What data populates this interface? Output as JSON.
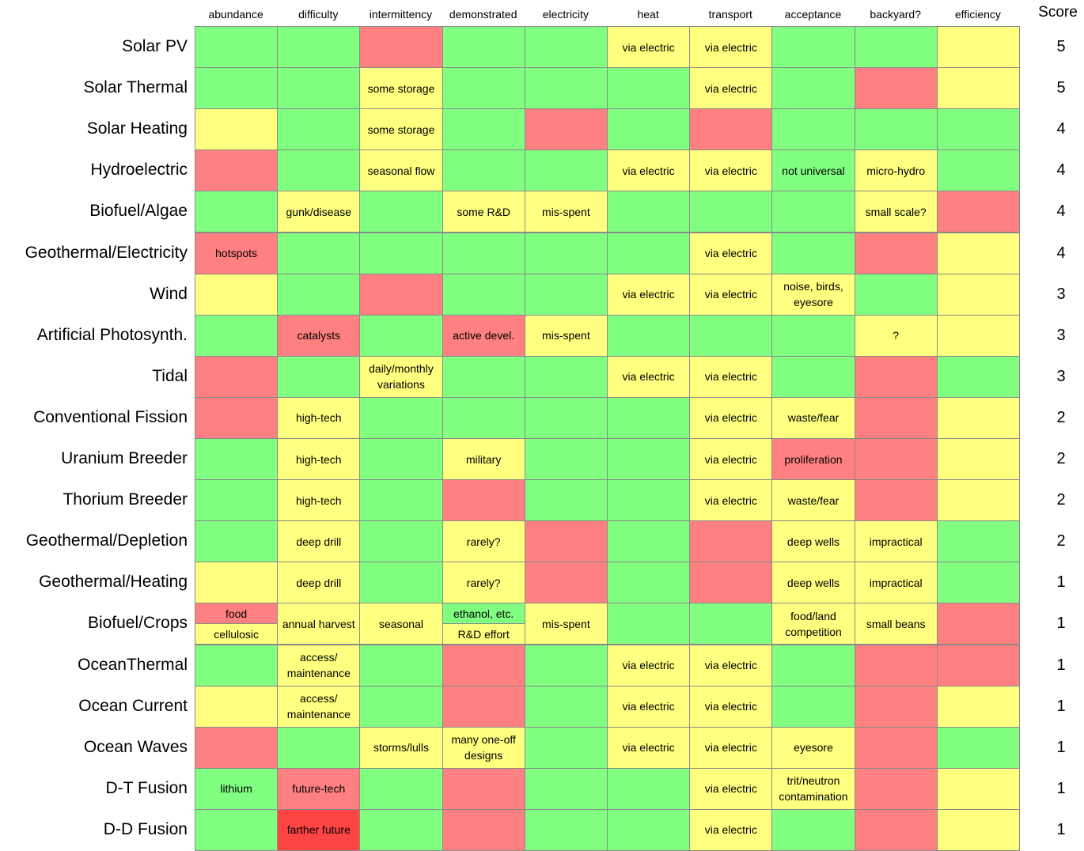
{
  "chart_data": {
    "type": "table",
    "columns": [
      "abundance",
      "difficulty",
      "intermittency",
      "demonstrated",
      "electricity",
      "heat",
      "transport",
      "acceptance",
      "backyard?",
      "efficiency"
    ],
    "score_label": "Score",
    "colors": {
      "g": "#80ff80",
      "y": "#ffff80",
      "r": "#ff8080",
      "R": "#ff4444"
    },
    "rows": [
      {
        "name": "Solar PV",
        "score": "5",
        "cells": [
          {
            "c": "g",
            "t": ""
          },
          {
            "c": "g",
            "t": ""
          },
          {
            "c": "r",
            "t": ""
          },
          {
            "c": "g",
            "t": ""
          },
          {
            "c": "g",
            "t": ""
          },
          {
            "c": "y",
            "t": "via electric"
          },
          {
            "c": "y",
            "t": "via electric"
          },
          {
            "c": "g",
            "t": ""
          },
          {
            "c": "g",
            "t": ""
          },
          {
            "c": "y",
            "t": ""
          }
        ]
      },
      {
        "name": "Solar Thermal",
        "score": "5",
        "cells": [
          {
            "c": "g",
            "t": ""
          },
          {
            "c": "g",
            "t": ""
          },
          {
            "c": "y",
            "t": "some storage"
          },
          {
            "c": "g",
            "t": ""
          },
          {
            "c": "g",
            "t": ""
          },
          {
            "c": "g",
            "t": ""
          },
          {
            "c": "y",
            "t": "via electric"
          },
          {
            "c": "g",
            "t": ""
          },
          {
            "c": "r",
            "t": ""
          },
          {
            "c": "y",
            "t": ""
          }
        ]
      },
      {
        "name": "Solar Heating",
        "score": "4",
        "cells": [
          {
            "c": "y",
            "t": ""
          },
          {
            "c": "g",
            "t": ""
          },
          {
            "c": "y",
            "t": "some storage"
          },
          {
            "c": "g",
            "t": ""
          },
          {
            "c": "r",
            "t": ""
          },
          {
            "c": "g",
            "t": ""
          },
          {
            "c": "r",
            "t": ""
          },
          {
            "c": "g",
            "t": ""
          },
          {
            "c": "g",
            "t": ""
          },
          {
            "c": "g",
            "t": ""
          }
        ]
      },
      {
        "name": "Hydroelectric",
        "score": "4",
        "cells": [
          {
            "c": "r",
            "t": ""
          },
          {
            "c": "g",
            "t": ""
          },
          {
            "c": "y",
            "t": "seasonal flow"
          },
          {
            "c": "g",
            "t": ""
          },
          {
            "c": "g",
            "t": ""
          },
          {
            "c": "y",
            "t": "via electric"
          },
          {
            "c": "y",
            "t": "via electric"
          },
          {
            "c": "g",
            "t": "not universal"
          },
          {
            "c": "y",
            "t": "micro-hydro"
          },
          {
            "c": "g",
            "t": ""
          }
        ]
      },
      {
        "name": "Biofuel/Algae",
        "score": "4",
        "cells": [
          {
            "c": "g",
            "t": ""
          },
          {
            "c": "y",
            "t": "gunk/disease"
          },
          {
            "c": "g",
            "t": ""
          },
          {
            "c": "y",
            "t": "some R&D"
          },
          {
            "c": "y",
            "t": "mis-spent"
          },
          {
            "c": "g",
            "t": ""
          },
          {
            "c": "g",
            "t": ""
          },
          {
            "c": "g",
            "t": ""
          },
          {
            "c": "y",
            "t": "small scale?"
          },
          {
            "c": "r",
            "t": ""
          }
        ]
      },
      {
        "name": "Geothermal/Electricity",
        "score": "4",
        "cells": [
          {
            "c": "r",
            "t": "hotspots"
          },
          {
            "c": "g",
            "t": ""
          },
          {
            "c": "g",
            "t": ""
          },
          {
            "c": "g",
            "t": ""
          },
          {
            "c": "g",
            "t": ""
          },
          {
            "c": "g",
            "t": ""
          },
          {
            "c": "y",
            "t": "via electric"
          },
          {
            "c": "g",
            "t": ""
          },
          {
            "c": "r",
            "t": ""
          },
          {
            "c": "y",
            "t": ""
          }
        ]
      },
      {
        "name": "Wind",
        "score": "3",
        "cells": [
          {
            "c": "y",
            "t": ""
          },
          {
            "c": "g",
            "t": ""
          },
          {
            "c": "r",
            "t": ""
          },
          {
            "c": "g",
            "t": ""
          },
          {
            "c": "g",
            "t": ""
          },
          {
            "c": "y",
            "t": "via electric"
          },
          {
            "c": "y",
            "t": "via electric"
          },
          {
            "c": "y",
            "t": "noise, birds, eyesore"
          },
          {
            "c": "g",
            "t": ""
          },
          {
            "c": "y",
            "t": ""
          }
        ]
      },
      {
        "name": "Artificial Photosynth.",
        "score": "3",
        "cells": [
          {
            "c": "g",
            "t": ""
          },
          {
            "c": "r",
            "t": "catalysts"
          },
          {
            "c": "g",
            "t": ""
          },
          {
            "c": "r",
            "t": "active devel."
          },
          {
            "c": "y",
            "t": "mis-spent"
          },
          {
            "c": "g",
            "t": ""
          },
          {
            "c": "g",
            "t": ""
          },
          {
            "c": "g",
            "t": ""
          },
          {
            "c": "y",
            "t": "?"
          },
          {
            "c": "y",
            "t": ""
          }
        ]
      },
      {
        "name": "Tidal",
        "score": "3",
        "cells": [
          {
            "c": "r",
            "t": ""
          },
          {
            "c": "g",
            "t": ""
          },
          {
            "c": "y",
            "t": "daily/monthly variations"
          },
          {
            "c": "g",
            "t": ""
          },
          {
            "c": "g",
            "t": ""
          },
          {
            "c": "y",
            "t": "via electric"
          },
          {
            "c": "y",
            "t": "via electric"
          },
          {
            "c": "g",
            "t": ""
          },
          {
            "c": "r",
            "t": ""
          },
          {
            "c": "g",
            "t": ""
          }
        ]
      },
      {
        "name": "Conventional Fission",
        "score": "2",
        "cells": [
          {
            "c": "r",
            "t": ""
          },
          {
            "c": "y",
            "t": "high-tech"
          },
          {
            "c": "g",
            "t": ""
          },
          {
            "c": "g",
            "t": ""
          },
          {
            "c": "g",
            "t": ""
          },
          {
            "c": "g",
            "t": ""
          },
          {
            "c": "y",
            "t": "via electric"
          },
          {
            "c": "y",
            "t": "waste/fear"
          },
          {
            "c": "r",
            "t": ""
          },
          {
            "c": "y",
            "t": ""
          }
        ]
      },
      {
        "name": "Uranium Breeder",
        "score": "2",
        "cells": [
          {
            "c": "g",
            "t": ""
          },
          {
            "c": "y",
            "t": "high-tech"
          },
          {
            "c": "g",
            "t": ""
          },
          {
            "c": "y",
            "t": "military"
          },
          {
            "c": "g",
            "t": ""
          },
          {
            "c": "g",
            "t": ""
          },
          {
            "c": "y",
            "t": "via electric"
          },
          {
            "c": "r",
            "t": "proliferation"
          },
          {
            "c": "r",
            "t": ""
          },
          {
            "c": "y",
            "t": ""
          }
        ]
      },
      {
        "name": "Thorium Breeder",
        "score": "2",
        "cells": [
          {
            "c": "g",
            "t": ""
          },
          {
            "c": "y",
            "t": "high-tech"
          },
          {
            "c": "g",
            "t": ""
          },
          {
            "c": "r",
            "t": ""
          },
          {
            "c": "g",
            "t": ""
          },
          {
            "c": "g",
            "t": ""
          },
          {
            "c": "y",
            "t": "via electric"
          },
          {
            "c": "y",
            "t": "waste/fear"
          },
          {
            "c": "r",
            "t": ""
          },
          {
            "c": "y",
            "t": ""
          }
        ]
      },
      {
        "name": "Geothermal/Depletion",
        "score": "2",
        "cells": [
          {
            "c": "g",
            "t": ""
          },
          {
            "c": "y",
            "t": "deep drill"
          },
          {
            "c": "g",
            "t": ""
          },
          {
            "c": "y",
            "t": "rarely?"
          },
          {
            "c": "r",
            "t": ""
          },
          {
            "c": "g",
            "t": ""
          },
          {
            "c": "r",
            "t": ""
          },
          {
            "c": "y",
            "t": "deep wells"
          },
          {
            "c": "y",
            "t": "impractical"
          },
          {
            "c": "g",
            "t": ""
          }
        ]
      },
      {
        "name": "Geothermal/Heating",
        "score": "1",
        "cells": [
          {
            "c": "y",
            "t": ""
          },
          {
            "c": "y",
            "t": "deep drill"
          },
          {
            "c": "g",
            "t": ""
          },
          {
            "c": "y",
            "t": "rarely?"
          },
          {
            "c": "r",
            "t": ""
          },
          {
            "c": "g",
            "t": ""
          },
          {
            "c": "r",
            "t": ""
          },
          {
            "c": "y",
            "t": "deep wells"
          },
          {
            "c": "y",
            "t": "impractical"
          },
          {
            "c": "g",
            "t": ""
          }
        ]
      },
      {
        "name": "Biofuel/Crops",
        "score": "1",
        "cells": [
          {
            "split": [
              {
                "c": "r",
                "t": "food"
              },
              {
                "c": "y",
                "t": "cellulosic"
              }
            ]
          },
          {
            "c": "y",
            "t": "annual harvest"
          },
          {
            "c": "y",
            "t": "seasonal"
          },
          {
            "split": [
              {
                "c": "g",
                "t": "ethanol, etc."
              },
              {
                "c": "y",
                "t": "R&D effort"
              }
            ]
          },
          {
            "c": "y",
            "t": "mis-spent"
          },
          {
            "c": "g",
            "t": ""
          },
          {
            "c": "g",
            "t": ""
          },
          {
            "c": "y",
            "t": "food/land competition"
          },
          {
            "c": "y",
            "t": "small beans"
          },
          {
            "c": "r",
            "t": ""
          }
        ]
      },
      {
        "name": "OceanThermal",
        "score": "1",
        "cells": [
          {
            "c": "g",
            "t": ""
          },
          {
            "c": "y",
            "t": "access/ maintenance"
          },
          {
            "c": "g",
            "t": ""
          },
          {
            "c": "r",
            "t": ""
          },
          {
            "c": "g",
            "t": ""
          },
          {
            "c": "y",
            "t": "via electric"
          },
          {
            "c": "y",
            "t": "via electric"
          },
          {
            "c": "g",
            "t": ""
          },
          {
            "c": "r",
            "t": ""
          },
          {
            "c": "r",
            "t": ""
          }
        ]
      },
      {
        "name": "Ocean Current",
        "score": "1",
        "cells": [
          {
            "c": "y",
            "t": ""
          },
          {
            "c": "y",
            "t": "access/ maintenance"
          },
          {
            "c": "g",
            "t": ""
          },
          {
            "c": "r",
            "t": ""
          },
          {
            "c": "g",
            "t": ""
          },
          {
            "c": "y",
            "t": "via electric"
          },
          {
            "c": "y",
            "t": "via electric"
          },
          {
            "c": "g",
            "t": ""
          },
          {
            "c": "r",
            "t": ""
          },
          {
            "c": "y",
            "t": ""
          }
        ]
      },
      {
        "name": "Ocean Waves",
        "score": "1",
        "cells": [
          {
            "c": "r",
            "t": ""
          },
          {
            "c": "g",
            "t": ""
          },
          {
            "c": "y",
            "t": "storms/lulls"
          },
          {
            "c": "y",
            "t": "many one-off designs"
          },
          {
            "c": "g",
            "t": ""
          },
          {
            "c": "y",
            "t": "via electric"
          },
          {
            "c": "y",
            "t": "via electric"
          },
          {
            "c": "y",
            "t": "eyesore"
          },
          {
            "c": "r",
            "t": ""
          },
          {
            "c": "g",
            "t": ""
          }
        ]
      },
      {
        "name": "D-T Fusion",
        "score": "1",
        "cells": [
          {
            "c": "g",
            "t": "lithium"
          },
          {
            "c": "r",
            "t": "future-tech"
          },
          {
            "c": "g",
            "t": ""
          },
          {
            "c": "r",
            "t": ""
          },
          {
            "c": "g",
            "t": ""
          },
          {
            "c": "g",
            "t": ""
          },
          {
            "c": "y",
            "t": "via electric"
          },
          {
            "c": "y",
            "t": "trit/neutron contamination"
          },
          {
            "c": "r",
            "t": ""
          },
          {
            "c": "y",
            "t": ""
          }
        ]
      },
      {
        "name": "D-D Fusion",
        "score": "1",
        "cells": [
          {
            "c": "g",
            "t": ""
          },
          {
            "c": "R",
            "t": "farther future"
          },
          {
            "c": "g",
            "t": ""
          },
          {
            "c": "r",
            "t": ""
          },
          {
            "c": "g",
            "t": ""
          },
          {
            "c": "g",
            "t": ""
          },
          {
            "c": "y",
            "t": "via electric"
          },
          {
            "c": "g",
            "t": ""
          },
          {
            "c": "r",
            "t": ""
          },
          {
            "c": "y",
            "t": ""
          }
        ]
      }
    ]
  }
}
